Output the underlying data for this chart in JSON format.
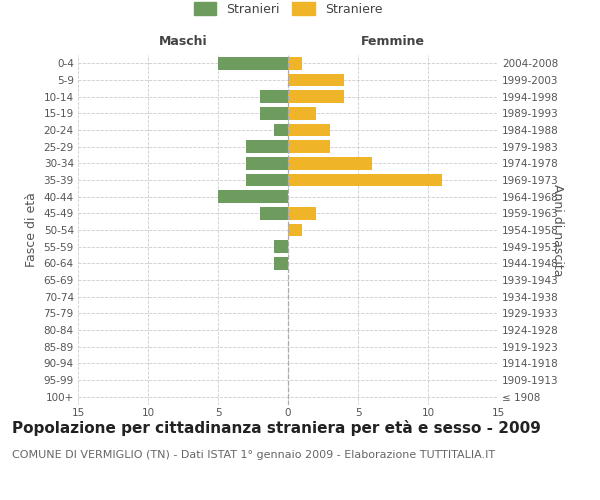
{
  "age_groups": [
    "100+",
    "95-99",
    "90-94",
    "85-89",
    "80-84",
    "75-79",
    "70-74",
    "65-69",
    "60-64",
    "55-59",
    "50-54",
    "45-49",
    "40-44",
    "35-39",
    "30-34",
    "25-29",
    "20-24",
    "15-19",
    "10-14",
    "5-9",
    "0-4"
  ],
  "birth_years": [
    "≤ 1908",
    "1909-1913",
    "1914-1918",
    "1919-1923",
    "1924-1928",
    "1929-1933",
    "1934-1938",
    "1939-1943",
    "1944-1948",
    "1949-1953",
    "1954-1958",
    "1959-1963",
    "1964-1968",
    "1969-1973",
    "1974-1978",
    "1979-1983",
    "1984-1988",
    "1989-1993",
    "1994-1998",
    "1999-2003",
    "2004-2008"
  ],
  "maschi": [
    0,
    0,
    0,
    0,
    0,
    0,
    0,
    0,
    1,
    1,
    0,
    2,
    5,
    3,
    3,
    3,
    1,
    2,
    2,
    0,
    5
  ],
  "femmine": [
    0,
    0,
    0,
    0,
    0,
    0,
    0,
    0,
    0,
    0,
    1,
    2,
    0,
    11,
    6,
    3,
    3,
    2,
    4,
    4,
    1
  ],
  "male_color": "#6e9b5e",
  "female_color": "#f0b429",
  "title": "Popolazione per cittadinanza straniera per età e sesso - 2009",
  "subtitle": "COMUNE DI VERMIGLIO (TN) - Dati ISTAT 1° gennaio 2009 - Elaborazione TUTTITALIA.IT",
  "xlabel_left": "Maschi",
  "xlabel_right": "Femmine",
  "ylabel_left": "Fasce di età",
  "ylabel_right": "Anni di nascita",
  "legend_male": "Stranieri",
  "legend_female": "Straniere",
  "xlim": 15,
  "bar_height": 0.75,
  "bg_color": "#ffffff",
  "grid_color": "#cccccc",
  "axis_color": "#888888",
  "title_fontsize": 11,
  "subtitle_fontsize": 8,
  "tick_fontsize": 7.5,
  "label_fontsize": 9,
  "header_fontsize": 9
}
